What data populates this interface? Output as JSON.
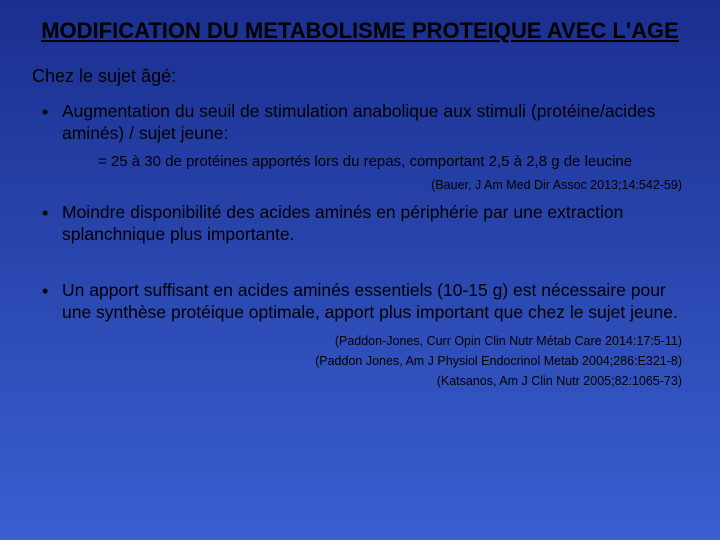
{
  "background": {
    "gradient_top": "#1a2f8f",
    "gradient_bottom": "#3a5fd0"
  },
  "title": "MODIFICATION DU METABOLISME PROTEIQUE AVEC L'AGE",
  "intro": "Chez le sujet âgé:",
  "bullets": [
    {
      "text": "Augmentation du seuil de stimulation anabolique aux stimuli (protéine/acides aminés) / sujet jeune:",
      "sub": "= 25 à 30 de protéines apportés lors du repas, comportant 2,5 à 2,8 g de leucine",
      "refs": [
        "(Bauer, J Am Med Dir Assoc 2013;14:542-59)"
      ]
    },
    {
      "text": "Moindre disponibilité des acides aminés en périphérie par une extraction splanchnique plus importante.",
      "refs": []
    },
    {
      "text": "Un apport suffisant en acides aminés essentiels (10-15 g) est nécessaire pour une synthèse protéique optimale, apport plus important que chez le sujet jeune.",
      "refs": [
        "(Paddon-Jones, Curr Opin Clin Nutr Métab Care 2014:17:5-11)",
        "(Paddon Jones, Am J Physiol Endocrinol Metab 2004;286:E321-8)",
        "(Katsanos, Am J Clin Nutr 2005;82:1065-73)"
      ]
    }
  ]
}
